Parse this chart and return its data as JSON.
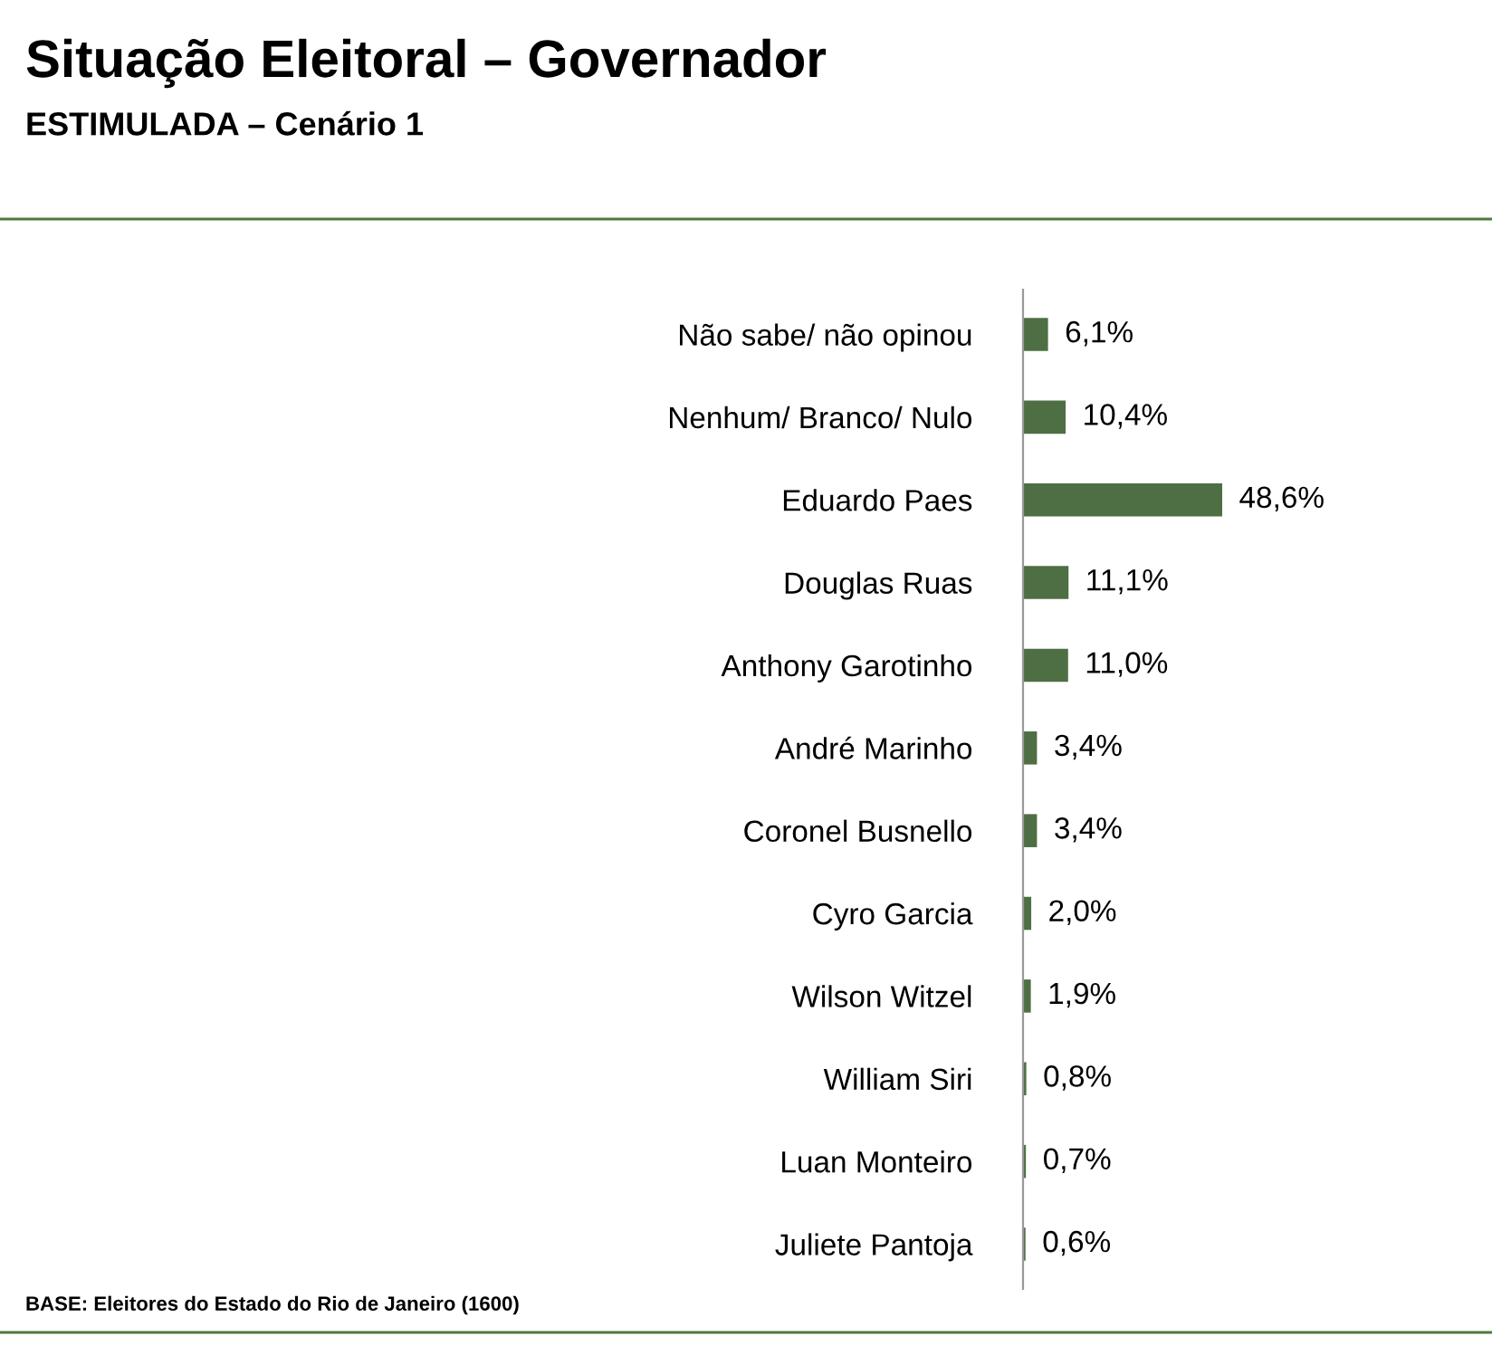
{
  "chart_data": {
    "type": "bar",
    "orientation": "horizontal",
    "title": "Situação Eleitoral – Governador",
    "subtitle": "ESTIMULADA – Cenário 1",
    "categories": [
      "Não sabe/ não opinou",
      "Nenhum/ Branco/ Nulo",
      "Eduardo Paes",
      "Douglas Ruas",
      "Anthony Garotinho",
      "André Marinho",
      "Coronel Busnello",
      "Cyro Garcia",
      "Wilson Witzel",
      "William Siri",
      "Luan Monteiro",
      "Juliete Pantoja"
    ],
    "values": [
      6.1,
      10.4,
      48.6,
      11.1,
      11.0,
      3.4,
      3.4,
      2.0,
      1.9,
      0.8,
      0.7,
      0.6
    ],
    "value_labels": [
      "6,1%",
      "10,4%",
      "48,6%",
      "11,1%",
      "11,0%",
      "3,4%",
      "3,4%",
      "2,0%",
      "1,9%",
      "0,8%",
      "0,7%",
      "0,6%"
    ],
    "color": "#4e6e44",
    "annotations": [
      "BASE: Eleitores do Estado do Rio de Janeiro (1600)"
    ]
  }
}
